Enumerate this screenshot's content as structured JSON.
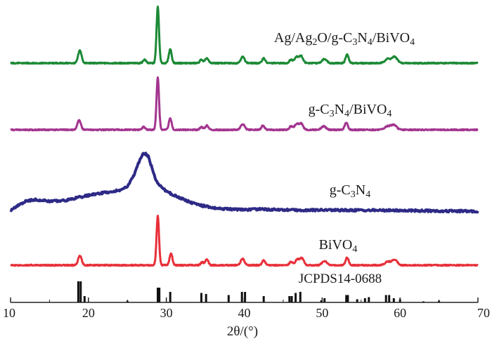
{
  "chart_data": {
    "type": "line",
    "xlabel": "2θ/(°)",
    "ylabel": "",
    "xlim": [
      10,
      70
    ],
    "x_ticks": [
      10,
      20,
      30,
      40,
      50,
      60,
      70
    ],
    "grid": false,
    "colors": {
      "green": "#1c8a36",
      "purple": "#a3358f",
      "navy": "#2e2a86",
      "red": "#e8303a",
      "reference": "#111111",
      "axis": "#222222"
    },
    "series": [
      {
        "name": "Ag/Ag2O/g-C3N4/BiVO4",
        "label_base": "Ag/Ag",
        "label_parts": [
          {
            "text": "Ag/Ag",
            "sub": false
          },
          {
            "text": "2",
            "sub": true
          },
          {
            "text": "O/g-C",
            "sub": false
          },
          {
            "text": "3",
            "sub": true
          },
          {
            "text": "N",
            "sub": false
          },
          {
            "text": "4",
            "sub": true
          },
          {
            "text": "/BiVO",
            "sub": false
          },
          {
            "text": "4",
            "sub": true
          }
        ],
        "color": "#1c8a36",
        "baseline": 0,
        "peaks": [
          [
            18.9,
            18,
            0.22
          ],
          [
            27.2,
            5,
            0.2
          ],
          [
            28.9,
            80,
            0.16
          ],
          [
            30.5,
            20,
            0.18
          ],
          [
            34.5,
            5,
            0.2
          ],
          [
            35.2,
            7,
            0.2
          ],
          [
            39.8,
            9,
            0.25
          ],
          [
            42.5,
            7,
            0.2
          ],
          [
            46.0,
            5,
            0.2
          ],
          [
            46.7,
            9,
            0.25
          ],
          [
            47.3,
            10,
            0.25
          ],
          [
            50.3,
            6,
            0.3
          ],
          [
            53.2,
            12,
            0.2
          ],
          [
            58.4,
            6,
            0.35
          ],
          [
            59.3,
            9,
            0.35
          ]
        ]
      },
      {
        "name": "g-C3N4/BiVO4",
        "label_parts": [
          {
            "text": "g-C",
            "sub": false
          },
          {
            "text": "3",
            "sub": true
          },
          {
            "text": "N",
            "sub": false
          },
          {
            "text": "4",
            "sub": true
          },
          {
            "text": "/BiVO",
            "sub": false
          },
          {
            "text": "4",
            "sub": true
          }
        ],
        "color": "#a3358f",
        "baseline": 0,
        "peaks": [
          [
            18.8,
            14,
            0.22
          ],
          [
            27.1,
            4,
            0.2
          ],
          [
            28.9,
            75,
            0.16
          ],
          [
            30.5,
            16,
            0.18
          ],
          [
            34.5,
            4,
            0.2
          ],
          [
            35.2,
            6,
            0.2
          ],
          [
            39.8,
            8,
            0.25
          ],
          [
            42.4,
            6,
            0.2
          ],
          [
            46.0,
            5,
            0.2
          ],
          [
            46.7,
            8,
            0.25
          ],
          [
            47.3,
            9,
            0.25
          ],
          [
            50.2,
            5,
            0.3
          ],
          [
            53.1,
            10,
            0.2
          ],
          [
            58.4,
            5,
            0.35
          ],
          [
            59.2,
            7,
            0.35
          ]
        ]
      },
      {
        "name": "g-C3N4",
        "label_parts": [
          {
            "text": "g-C",
            "sub": false
          },
          {
            "text": "3",
            "sub": true
          },
          {
            "text": "N",
            "sub": false
          },
          {
            "text": "4",
            "sub": true
          }
        ],
        "color": "#2e2a86",
        "baseline": 0,
        "points": [
          [
            10,
            0
          ],
          [
            11,
            6
          ],
          [
            12,
            11
          ],
          [
            13,
            13
          ],
          [
            14,
            12
          ],
          [
            15,
            11
          ],
          [
            16,
            11.5
          ],
          [
            17,
            12
          ],
          [
            18,
            14
          ],
          [
            19,
            16
          ],
          [
            20,
            18
          ],
          [
            21,
            19.5
          ],
          [
            22,
            21
          ],
          [
            23,
            22.5
          ],
          [
            24,
            24
          ],
          [
            25,
            28
          ],
          [
            26,
            45
          ],
          [
            26.5,
            58
          ],
          [
            27.0,
            67
          ],
          [
            27.3,
            68
          ],
          [
            27.7,
            64
          ],
          [
            28.0,
            55
          ],
          [
            28.5,
            40
          ],
          [
            29,
            31
          ],
          [
            30,
            23
          ],
          [
            31,
            18
          ],
          [
            32,
            14
          ],
          [
            33,
            10
          ],
          [
            34,
            7
          ],
          [
            35,
            5
          ],
          [
            36,
            3
          ],
          [
            38,
            1.5
          ],
          [
            40,
            1
          ],
          [
            42,
            1.5
          ],
          [
            44,
            1
          ],
          [
            46,
            0.5
          ],
          [
            50,
            0.5
          ],
          [
            55,
            0.3
          ],
          [
            60,
            0
          ],
          [
            65,
            -0.5
          ],
          [
            70,
            -1
          ]
        ]
      },
      {
        "name": "BiVO4",
        "label_parts": [
          {
            "text": "BiVO",
            "sub": false
          },
          {
            "text": "4",
            "sub": true
          }
        ],
        "color": "#e8303a",
        "baseline": 0,
        "peaks": [
          [
            18.9,
            14,
            0.22
          ],
          [
            28.9,
            70,
            0.16
          ],
          [
            30.6,
            17,
            0.18
          ],
          [
            34.6,
            4,
            0.2
          ],
          [
            35.2,
            8,
            0.2
          ],
          [
            39.8,
            9,
            0.25
          ],
          [
            42.5,
            7,
            0.2
          ],
          [
            46.0,
            5,
            0.2
          ],
          [
            46.8,
            8,
            0.25
          ],
          [
            47.4,
            10,
            0.25
          ],
          [
            50.3,
            6,
            0.3
          ],
          [
            53.2,
            11,
            0.2
          ],
          [
            58.4,
            5,
            0.35
          ],
          [
            59.3,
            8,
            0.35
          ]
        ]
      }
    ],
    "reference": {
      "name": "JCPDS14-0688",
      "label_parts": [
        {
          "text": "JCPDS14-0688",
          "sub": false
        }
      ],
      "lines": [
        [
          18.7,
          100
        ],
        [
          19.0,
          100
        ],
        [
          19.5,
          30
        ],
        [
          25.0,
          8
        ],
        [
          28.9,
          70
        ],
        [
          29.1,
          70
        ],
        [
          30.5,
          50
        ],
        [
          34.5,
          45
        ],
        [
          35.1,
          40
        ],
        [
          38.0,
          35
        ],
        [
          39.7,
          50
        ],
        [
          40.1,
          50
        ],
        [
          42.5,
          30
        ],
        [
          45.8,
          30
        ],
        [
          46.1,
          30
        ],
        [
          46.6,
          45
        ],
        [
          47.2,
          50
        ],
        [
          49.9,
          10
        ],
        [
          50.3,
          20
        ],
        [
          53.1,
          35
        ],
        [
          53.3,
          35
        ],
        [
          54.5,
          15
        ],
        [
          55.5,
          20
        ],
        [
          56.0,
          25
        ],
        [
          58.2,
          35
        ],
        [
          58.6,
          35
        ],
        [
          59.2,
          20
        ],
        [
          60.0,
          15
        ],
        [
          63.0,
          5
        ],
        [
          65.0,
          8
        ]
      ]
    }
  }
}
